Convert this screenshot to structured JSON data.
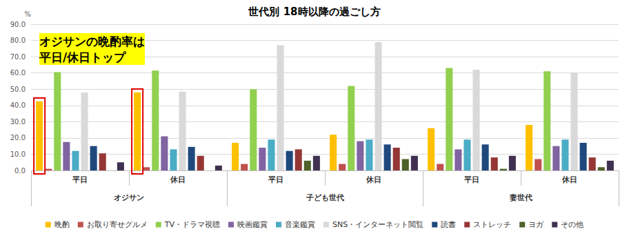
{
  "chart_data": {
    "type": "bar",
    "title": "世代別 18時以降の過ごし方",
    "ylabel": "%",
    "categories": [
      "平日",
      "休日",
      "平日",
      "休日",
      "平日",
      "休日"
    ],
    "groups": [
      "オジサン",
      "子ども世代",
      "妻世代"
    ],
    "series": [
      {
        "name": "晩酌",
        "color": "#FFC000",
        "values": [
          42.5,
          48,
          17,
          22,
          26,
          28
        ]
      },
      {
        "name": "お取り寄せグルメ",
        "color": "#C0504D",
        "values": [
          1,
          2,
          4,
          4,
          4,
          7
        ]
      },
      {
        "name": "TV・ドラマ視聴",
        "color": "#92D050",
        "values": [
          60.5,
          61.5,
          50,
          52,
          63,
          61
        ]
      },
      {
        "name": "映画鑑賞",
        "color": "#8064A2",
        "values": [
          17.5,
          21,
          14,
          18,
          13,
          15
        ]
      },
      {
        "name": "音楽鑑賞",
        "color": "#4BACC6",
        "values": [
          12,
          13,
          19,
          19,
          19,
          19
        ]
      },
      {
        "name": "SNS・インターネット閲覧",
        "color": "#D9D9D9",
        "values": [
          48,
          48.5,
          77,
          79,
          62,
          60
        ]
      },
      {
        "name": "読書",
        "color": "#1F497D",
        "values": [
          15,
          14.5,
          12,
          16,
          16,
          17
        ]
      },
      {
        "name": "ストレッチ",
        "color": "#953735",
        "values": [
          10.5,
          9,
          13,
          14,
          8,
          8
        ]
      },
      {
        "name": "ヨガ",
        "color": "#4F6228",
        "values": [
          0,
          0,
          6,
          7,
          1,
          2
        ]
      },
      {
        "name": "その他",
        "color": "#403152",
        "values": [
          5,
          3,
          9,
          9,
          9,
          6
        ]
      }
    ],
    "ylim": [
      0,
      90
    ],
    "yticks": [
      {
        "value": 0,
        "label": "0.0"
      },
      {
        "value": 10,
        "label": "10.0"
      },
      {
        "value": 20,
        "label": "20.0"
      },
      {
        "value": 30,
        "label": "30.0"
      },
      {
        "value": 40,
        "label": "40.0"
      },
      {
        "value": 50,
        "label": "50.0"
      },
      {
        "value": 60,
        "label": "60.0"
      },
      {
        "value": 70,
        "label": "70.0"
      },
      {
        "value": 80,
        "label": "80.0"
      },
      {
        "value": 90,
        "label": "90.0"
      }
    ],
    "grid": true,
    "legend": "bottom",
    "annotations": [
      {
        "text": "オジサンの晩酌率は\n平日/休日トップ",
        "target_series": "晩酌",
        "target_indices": [
          0,
          1
        ]
      }
    ]
  }
}
